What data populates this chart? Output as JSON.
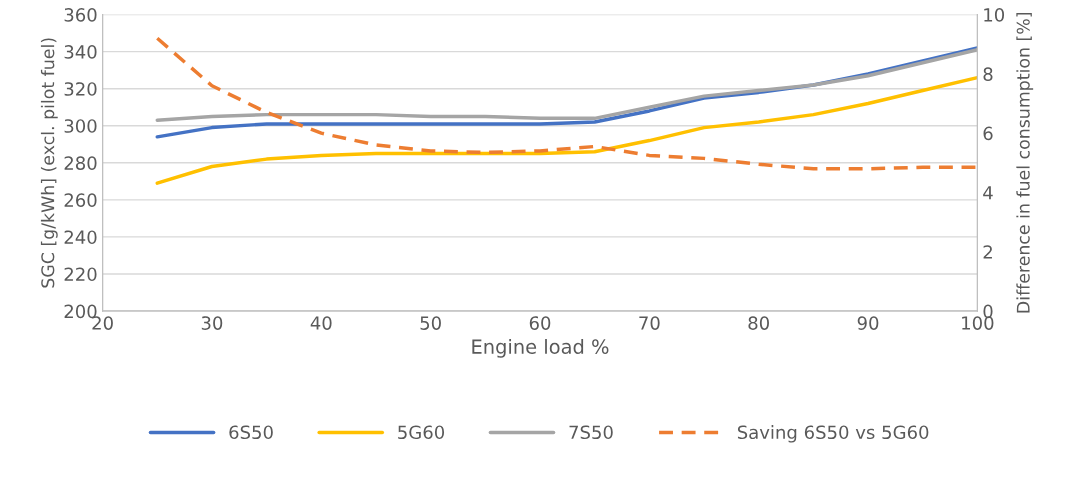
{
  "chart_data": {
    "type": "line",
    "xlabel": "Engine load %",
    "ylabel": "SGC [g/kWh] (excl. pilot fuel)",
    "y2label": "Difference in fuel consumption [%]",
    "x": [
      25,
      30,
      35,
      40,
      45,
      50,
      55,
      60,
      65,
      70,
      75,
      80,
      85,
      90,
      95,
      100
    ],
    "series": [
      {
        "name": "6S50",
        "color": "#4472c4",
        "line_style": "solid",
        "values": [
          294,
          299,
          301,
          301,
          301,
          301,
          301,
          301,
          302,
          308,
          315,
          318,
          322,
          328,
          335,
          342
        ]
      },
      {
        "name": "5G60",
        "color": "#ffc000",
        "line_style": "solid",
        "values": [
          269,
          278,
          282,
          284,
          285,
          285,
          285,
          285,
          286,
          292,
          299,
          302,
          306,
          312,
          319,
          326
        ]
      },
      {
        "name": "7S50",
        "color": "#a5a5a5",
        "line_style": "solid",
        "values": [
          303,
          305,
          306,
          306,
          306,
          305,
          305,
          304,
          304,
          310,
          316,
          319,
          322,
          327,
          334,
          341
        ]
      },
      {
        "name": "Saving 6S50 vs 5G60",
        "color": "#ed7d31",
        "line_style": "dashed",
        "axis": "y2",
        "values": [
          9.2,
          7.6,
          6.7,
          6.0,
          5.6,
          5.4,
          5.35,
          5.4,
          5.55,
          5.25,
          5.15,
          4.95,
          4.8,
          4.8,
          4.85,
          4.85
        ]
      }
    ],
    "xlim": [
      20,
      100
    ],
    "xticks": [
      20,
      30,
      40,
      50,
      60,
      70,
      80,
      90,
      100
    ],
    "ylim": [
      200,
      360
    ],
    "yticks": [
      200,
      220,
      240,
      260,
      280,
      300,
      320,
      340,
      360
    ],
    "y2lim": [
      0,
      10
    ],
    "y2ticks": [
      0,
      2,
      4,
      6,
      8,
      10
    ],
    "grid": "y",
    "legend": "bottom",
    "marker": "none"
  }
}
